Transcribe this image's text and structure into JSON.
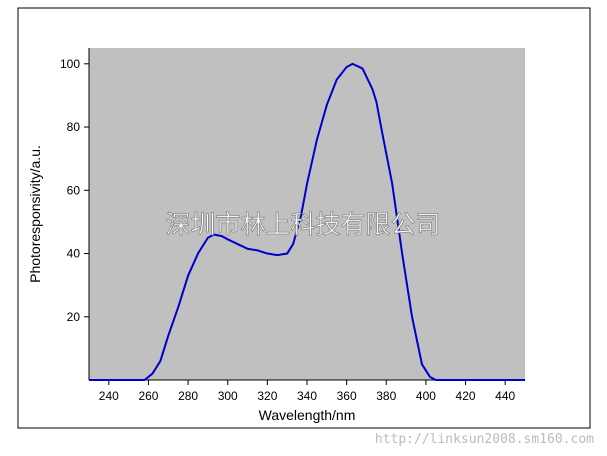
{
  "chart_data": {
    "type": "line",
    "xlabel": "Wavelength/nm",
    "ylabel": "Photoresponsivity/a.u.",
    "annotations": [
      "深圳市林上科技有限公司",
      "http://linksun2008.sm160.com"
    ],
    "x": [
      230,
      255,
      258,
      262,
      266,
      270,
      275,
      280,
      285,
      290,
      293,
      297,
      300,
      305,
      310,
      315,
      320,
      325,
      330,
      333,
      337,
      340,
      345,
      350,
      355,
      360,
      363,
      368,
      373,
      375,
      378,
      383,
      388,
      393,
      398,
      402,
      405,
      420,
      450
    ],
    "series": [
      {
        "name": "Photoresponsivity",
        "color": "#0000cc",
        "values": [
          0,
          0,
          0,
          2,
          6,
          14,
          23,
          33,
          40,
          45,
          46,
          45.5,
          44.5,
          43,
          41.5,
          41,
          40,
          39.5,
          40,
          43,
          52,
          62,
          76,
          87,
          95,
          99,
          100,
          98.5,
          92,
          88,
          78,
          62,
          40,
          20,
          5,
          1,
          0,
          0,
          0
        ]
      }
    ],
    "xlim": [
      230,
      450
    ],
    "xticks": [
      240,
      260,
      280,
      300,
      320,
      340,
      360,
      380,
      400,
      420,
      440
    ],
    "ylim": [
      0,
      105
    ],
    "yticks": [
      20,
      40,
      60,
      80,
      100
    ],
    "background": "#c0c0c0"
  }
}
